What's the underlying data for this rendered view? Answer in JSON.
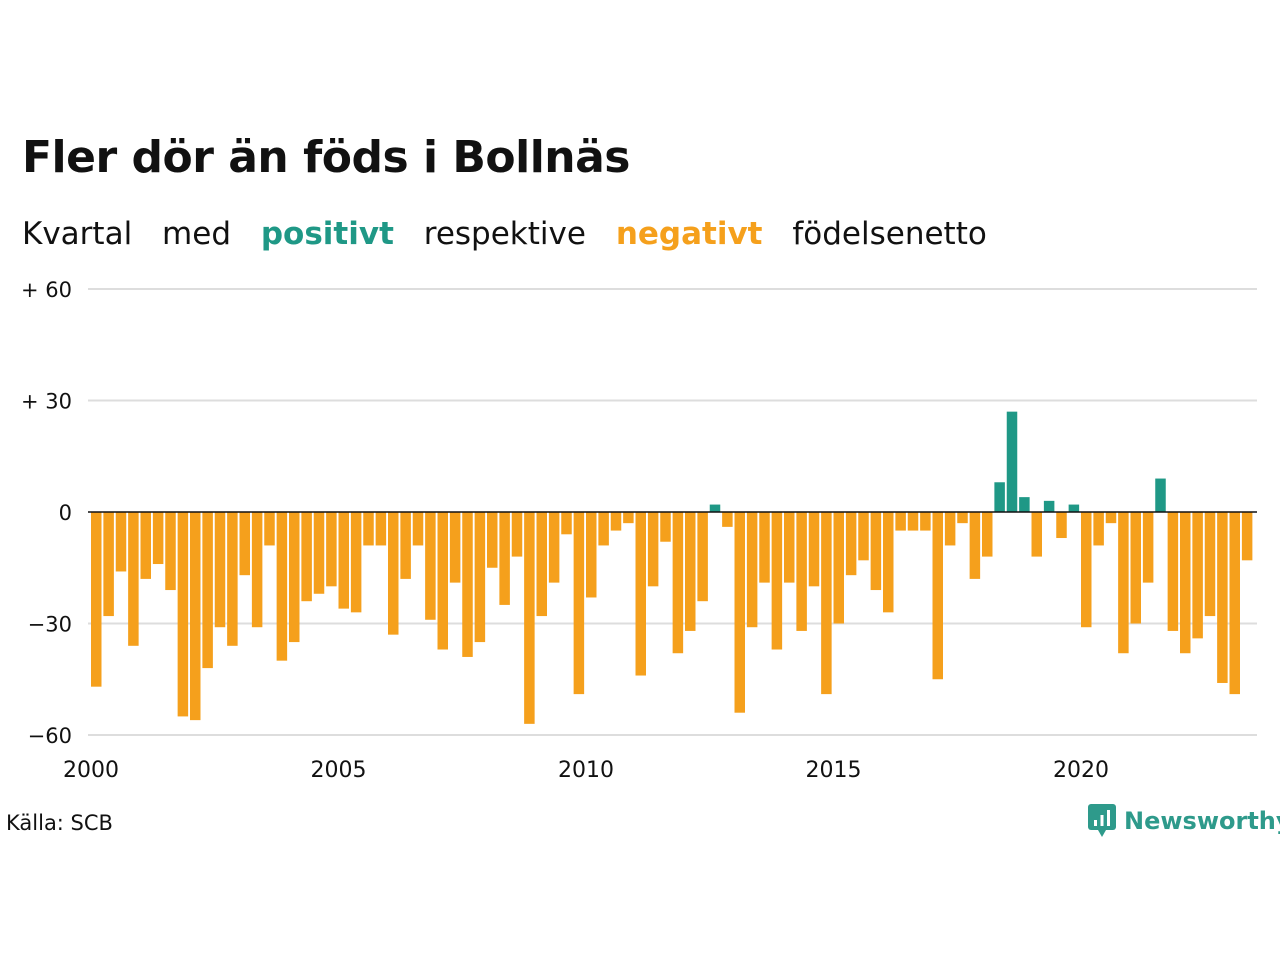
{
  "title": "Fler dör än föds i Bollnäs",
  "subtitle": {
    "part1": "Kvartal",
    "part2": "med",
    "positive_word": "positivt",
    "part3": "respektive",
    "negative_word": "negativt",
    "part4": "födelsenetto"
  },
  "source": "Källa: SCB",
  "logo": {
    "text": "Newsworthy",
    "icon": "chart-bubble-icon"
  },
  "colors": {
    "positive": "#1f9886",
    "negative": "#f5a01c",
    "grid": "#dddddd",
    "zero_line": "#111111"
  },
  "chart_data": {
    "type": "bar",
    "ylim": [
      -60,
      60
    ],
    "yticks": [
      {
        "value": 60,
        "label": "+ 60"
      },
      {
        "value": 30,
        "label": "+ 30"
      },
      {
        "value": 0,
        "label": "0"
      },
      {
        "value": -30,
        "label": "−30"
      },
      {
        "value": -60,
        "label": "−60"
      }
    ],
    "xticks": [
      {
        "year": 2000,
        "label": "2000"
      },
      {
        "year": 2005,
        "label": "2005"
      },
      {
        "year": 2010,
        "label": "2010"
      },
      {
        "year": 2015,
        "label": "2015"
      },
      {
        "year": 2020,
        "label": "2020"
      }
    ],
    "x_start": "2000 Q1",
    "period": "quarter",
    "values": [
      -47,
      -28,
      -16,
      -36,
      -18,
      -14,
      -21,
      -55,
      -56,
      -42,
      -31,
      -36,
      -17,
      -31,
      -9,
      -40,
      -35,
      -24,
      -22,
      -20,
      -26,
      -27,
      -9,
      -9,
      -33,
      -18,
      -9,
      -29,
      -37,
      -19,
      -39,
      -35,
      -15,
      -25,
      -12,
      -57,
      -28,
      -19,
      -6,
      -49,
      -23,
      -9,
      -5,
      -3,
      -44,
      -20,
      -8,
      -38,
      -32,
      -24,
      2,
      -4,
      -54,
      -31,
      -19,
      -37,
      -19,
      -32,
      -20,
      -49,
      -30,
      -17,
      -13,
      -21,
      -27,
      -5,
      -5,
      -5,
      -45,
      -9,
      -3,
      -18,
      -12,
      8,
      27,
      4,
      -12,
      3,
      -7,
      2,
      -31,
      -9,
      -3,
      -38,
      -30,
      -19,
      9,
      -32,
      -38,
      -34,
      -28,
      -46,
      -49,
      -13
    ]
  }
}
